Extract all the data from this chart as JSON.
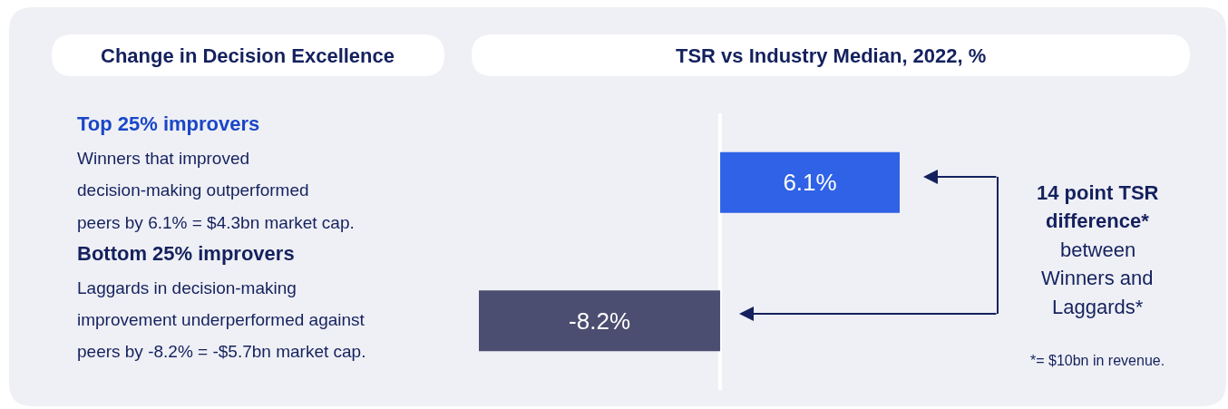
{
  "chart_data": {
    "type": "bar",
    "orientation": "horizontal",
    "title": "TSR vs Industry Median, 2022, %",
    "ylabel": "Change in Decision Excellence",
    "categories": [
      "Top 25% improvers",
      "Bottom 25% improvers"
    ],
    "values": [
      6.1,
      -8.2
    ],
    "colors": [
      "#2f62e6",
      "#4b4e70"
    ],
    "value_labels": [
      "6.1%",
      "-8.2%"
    ],
    "xlim": [
      -8.2,
      6.1
    ],
    "annotations": [
      "Winners that improved\ndecision-making outperformed\npeers by 6.1% = $4.3bn market cap.",
      "Laggards in decision-making\nimprovement underperformed against\npeers by -8.2% = -$5.7bn market cap.",
      "14 point TSR\ndifference*\nbetween\nWinners and\nLaggards*",
      "*= $10bn in revenue."
    ]
  }
}
